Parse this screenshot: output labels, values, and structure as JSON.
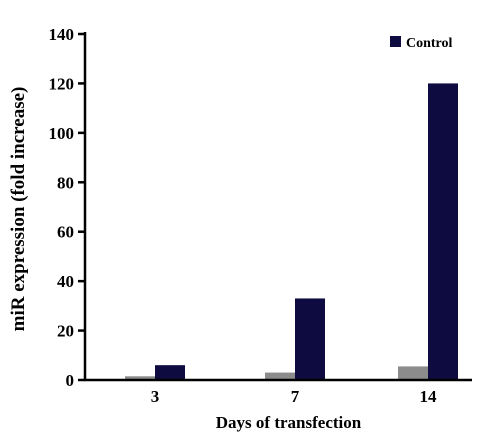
{
  "chart_data": {
    "type": "bar",
    "title": "",
    "xlabel": "Days of transfection",
    "ylabel": "miR expression (fold increase)",
    "categories": [
      "3",
      "7",
      "14"
    ],
    "series": [
      {
        "values": [
          1.5,
          3,
          5.5
        ],
        "color": "#8c8c8c"
      },
      {
        "name": "Control",
        "values": [
          6,
          33,
          120
        ],
        "color": "#0d0b3f"
      }
    ],
    "ylim": [
      0,
      140
    ],
    "yticks": [
      0,
      20,
      40,
      60,
      80,
      100,
      120,
      140
    ],
    "legend": {
      "position": "top-right"
    },
    "grid": false
  }
}
